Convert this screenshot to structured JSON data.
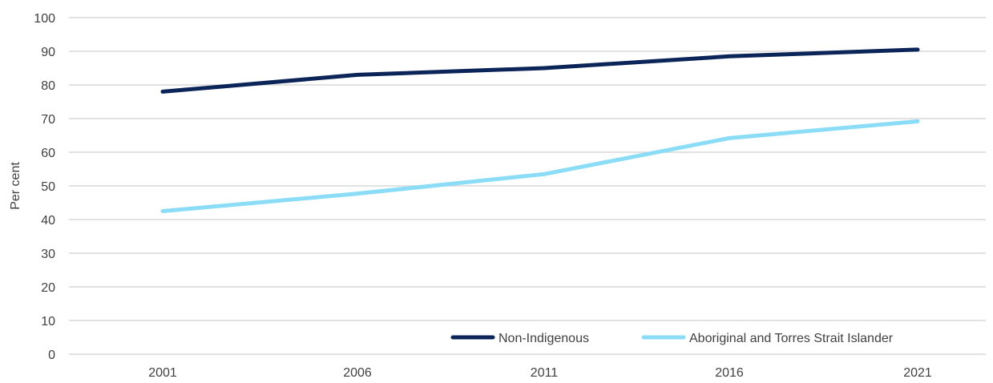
{
  "chart_data": {
    "type": "line",
    "title": "",
    "xlabel": "",
    "ylabel": "Per cent",
    "x": [
      "2001",
      "2006",
      "2011",
      "2016",
      "2021"
    ],
    "ylim": [
      0,
      100
    ],
    "yticks": [
      0,
      10,
      20,
      30,
      40,
      50,
      60,
      70,
      80,
      90,
      100
    ],
    "grid": "horizontal",
    "legend_position": "bottom-right",
    "series": [
      {
        "name": "Non-Indigenous",
        "color": "#0b2559",
        "values": [
          78,
          83,
          85,
          88.5,
          90.5
        ]
      },
      {
        "name": "Aboriginal and Torres Strait Islander",
        "color": "#8adcf7",
        "values": [
          42.5,
          47.7,
          53.5,
          64.2,
          69.2
        ]
      }
    ]
  },
  "colors": {
    "gridline": "#d9d9d9",
    "text": "#404040"
  }
}
